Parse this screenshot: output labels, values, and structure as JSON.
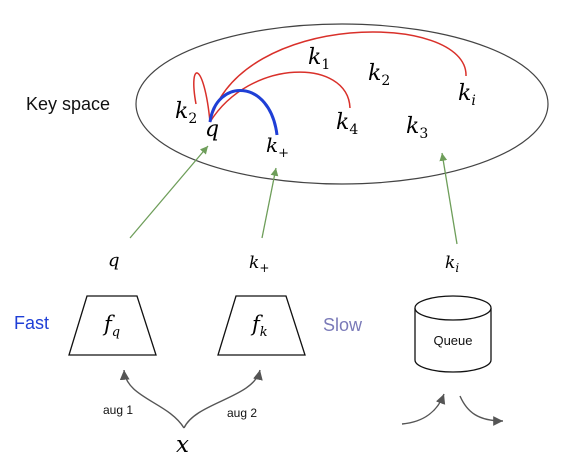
{
  "key_space": {
    "title": "Key space",
    "keys": {
      "k1": {
        "base": "k",
        "sub": "1"
      },
      "k2_top": {
        "base": "k",
        "sub": "2"
      },
      "k2_left": {
        "base": "k",
        "sub": "2"
      },
      "k3": {
        "base": "k",
        "sub": "3"
      },
      "k4": {
        "base": "k",
        "sub": "4"
      },
      "ki": {
        "base": "k",
        "sub": "i"
      },
      "q": {
        "base": "q",
        "sub": ""
      },
      "kplus": {
        "base": "k",
        "sub": "+"
      }
    }
  },
  "encoders": {
    "fast": {
      "label": "Fast",
      "color": "#1f3fd6",
      "func": "f",
      "sub": "q"
    },
    "slow": {
      "label": "Slow",
      "color": "#7a7ab8",
      "func": "f",
      "sub": "k"
    }
  },
  "outputs": {
    "q": {
      "base": "q",
      "sub": ""
    },
    "kplus": {
      "base": "k",
      "sub": "+"
    },
    "ki": {
      "base": "k",
      "sub": "i"
    }
  },
  "queue": {
    "label": "Queue"
  },
  "augmentations": {
    "aug1": "aug 1",
    "aug2": "aug 2"
  },
  "input": {
    "symbol": "x"
  },
  "colors": {
    "negative_arc": "#d9302a",
    "positive_arc": "#1f3fd6",
    "projection_arrow": "#6e9e5a",
    "aug_arrow": "#555555"
  }
}
